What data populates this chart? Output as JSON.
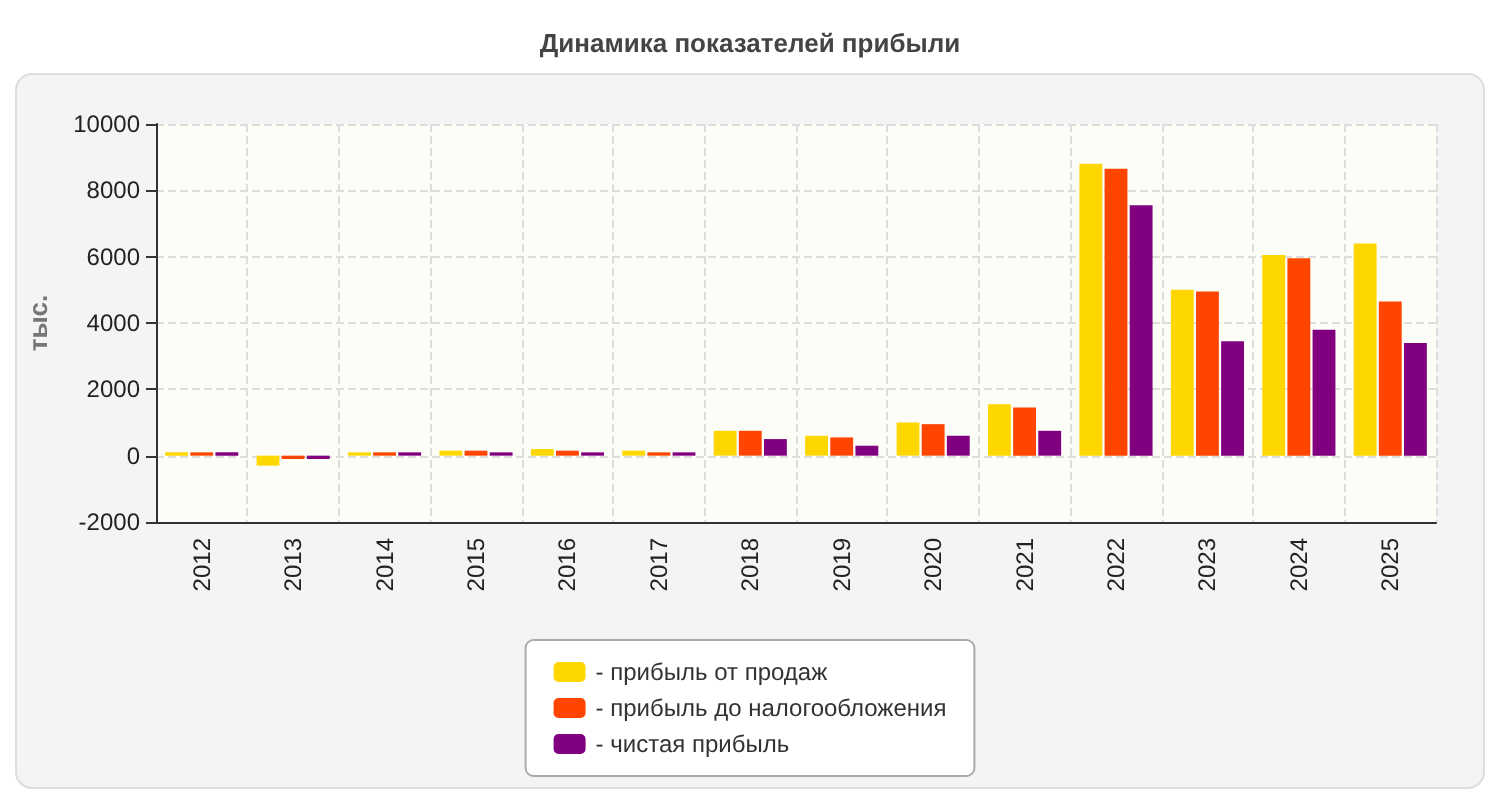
{
  "chart_data": {
    "type": "bar",
    "title": "Динамика показателей прибыли",
    "ylabel": "тыс.",
    "categories": [
      "2012",
      "2013",
      "2014",
      "2015",
      "2016",
      "2017",
      "2018",
      "2019",
      "2020",
      "2021",
      "2022",
      "2023",
      "2024",
      "2025"
    ],
    "series": [
      {
        "name": "- прибыль от продаж",
        "color": "#ffd700",
        "values": [
          100,
          -300,
          100,
          150,
          200,
          150,
          750,
          600,
          1000,
          1550,
          8800,
          5000,
          6050,
          6400
        ]
      },
      {
        "name": "- прибыль до налогообложения",
        "color": "#ff4500",
        "values": [
          100,
          -100,
          100,
          150,
          150,
          100,
          750,
          550,
          950,
          1450,
          8650,
          4950,
          5950,
          4650
        ]
      },
      {
        "name": "- чистая прибыль",
        "color": "#800080",
        "values": [
          100,
          -100,
          100,
          100,
          100,
          100,
          500,
          300,
          600,
          750,
          7550,
          3450,
          3800,
          3400
        ]
      }
    ],
    "ylim": [
      -2000,
      10000
    ],
    "yticks": [
      -2000,
      0,
      2000,
      4000,
      6000,
      8000,
      10000
    ],
    "grid": true,
    "legend": "bottom"
  }
}
